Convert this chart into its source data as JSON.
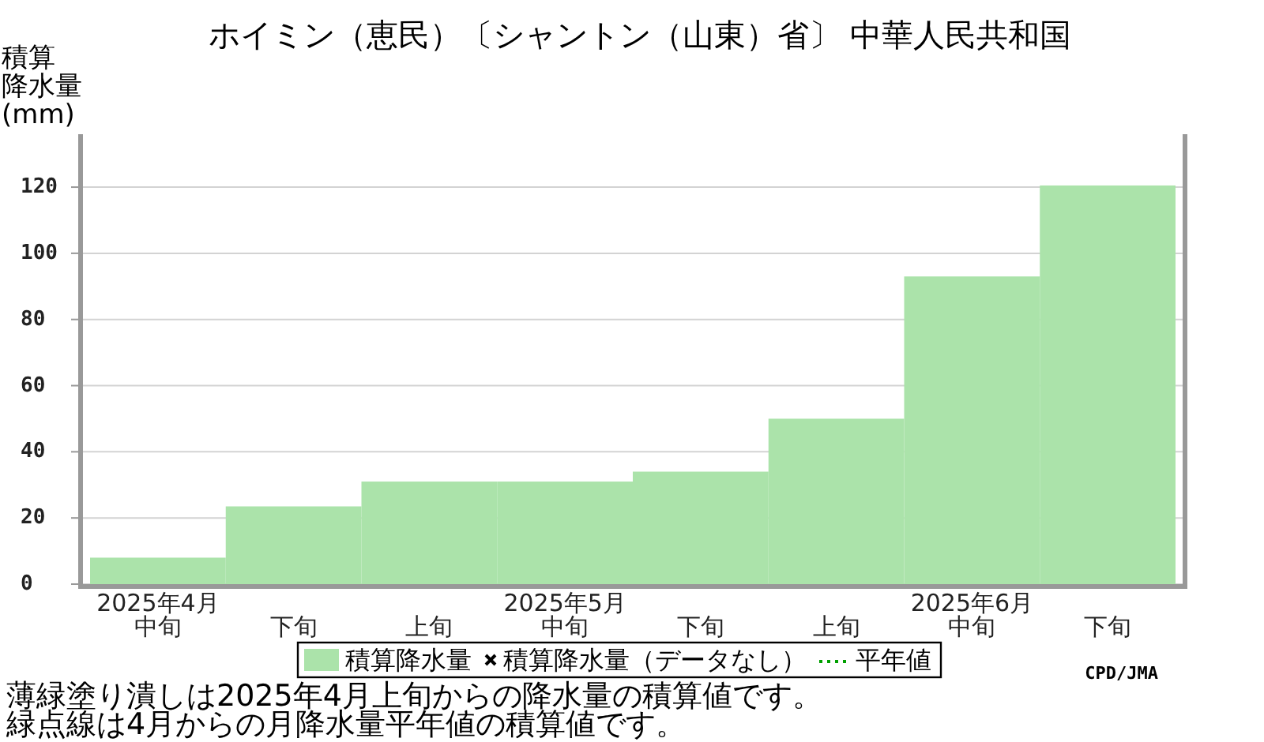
{
  "chart_data": {
    "type": "bar",
    "title": "ホイミン（恵民）〔シャントン（山東）省〕 中華人民共和国",
    "ylabel": "積算降水量(mm)",
    "categories": [
      "2025年4月中旬",
      "下旬",
      "上旬",
      "2025年5月中旬",
      "下旬",
      "上旬",
      "2025年6月中旬",
      "下旬"
    ],
    "series": [
      {
        "name": "積算降水量",
        "color": "#abe3aa",
        "values": [
          8,
          23.5,
          31,
          31,
          34,
          50,
          93,
          120.5
        ]
      },
      {
        "name": "積算降水量（データなし）",
        "type": "scatter",
        "marker": "cross",
        "color": "#000000",
        "values": [
          null,
          null,
          null,
          null,
          null,
          null,
          null,
          null
        ]
      },
      {
        "name": "平年値",
        "type": "line",
        "line_style": "dotted",
        "color": "#00a000",
        "values": [
          null,
          null,
          null,
          null,
          null,
          null,
          null,
          null
        ]
      }
    ],
    "ylim": [
      0,
      136
    ],
    "yticks": [
      0,
      20,
      40,
      60,
      80,
      100,
      120
    ],
    "grid": "y",
    "legend": "bottom",
    "annotations": [
      "CPD/JMA",
      "薄緑塗り潰しは2025年4月上旬からの降水量の積算値です。",
      "緑点線は4月からの月降水量平年値の積算値です。"
    ]
  }
}
